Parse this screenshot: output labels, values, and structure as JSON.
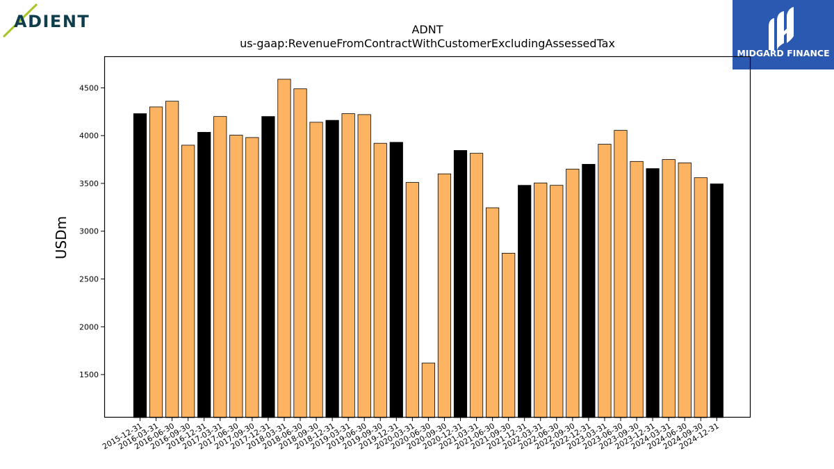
{
  "logos": {
    "left": {
      "text": "ADIENT",
      "color": "#0f3d4c",
      "accent": "#a6c626"
    },
    "right": {
      "text": "MIDGARD FINANCE",
      "background": "#2b59b1",
      "color": "#ffffff"
    }
  },
  "chart_data": {
    "type": "bar",
    "title": "ADNT",
    "subtitle": "us-gaap:RevenueFromContractWithCustomerExcludingAssessedTax",
    "xlabel": "",
    "ylabel": "USDm",
    "ylim": [
      1050,
      4830
    ],
    "yticks": [
      1500,
      2000,
      2500,
      3000,
      3500,
      4000,
      4500
    ],
    "grid": false,
    "colors": {
      "year_end": "#000000",
      "quarter": "#fdb462",
      "edge": "#000000"
    },
    "categories": [
      "2015-12-31",
      "2016-03-31",
      "2016-06-30",
      "2016-09-30",
      "2016-12-31",
      "2017-03-31",
      "2017-06-30",
      "2017-09-30",
      "2017-12-31",
      "2018-03-31",
      "2018-06-30",
      "2018-09-30",
      "2018-12-31",
      "2019-03-31",
      "2019-06-30",
      "2019-09-30",
      "2019-12-31",
      "2020-03-31",
      "2020-06-30",
      "2020-09-30",
      "2020-12-31",
      "2021-03-31",
      "2021-06-30",
      "2021-09-30",
      "2021-12-31",
      "2022-03-31",
      "2022-06-30",
      "2022-09-30",
      "2022-12-31",
      "2023-03-31",
      "2023-06-30",
      "2023-09-30",
      "2023-12-31",
      "2024-03-31",
      "2024-06-30",
      "2024-09-30",
      "2024-12-31"
    ],
    "values": [
      4230,
      4300,
      4360,
      3900,
      4035,
      4200,
      4005,
      3980,
      4200,
      4590,
      4490,
      4140,
      4160,
      4230,
      4220,
      3920,
      3930,
      3510,
      1620,
      3600,
      3845,
      3815,
      3245,
      2770,
      3480,
      3505,
      3480,
      3650,
      3700,
      3910,
      4055,
      3730,
      3655,
      3750,
      3715,
      3560,
      3495
    ],
    "highlight": [
      true,
      false,
      false,
      false,
      true,
      false,
      false,
      false,
      true,
      false,
      false,
      false,
      true,
      false,
      false,
      false,
      true,
      false,
      false,
      false,
      true,
      false,
      false,
      false,
      true,
      false,
      false,
      false,
      true,
      false,
      false,
      false,
      true,
      false,
      false,
      false,
      true
    ]
  }
}
